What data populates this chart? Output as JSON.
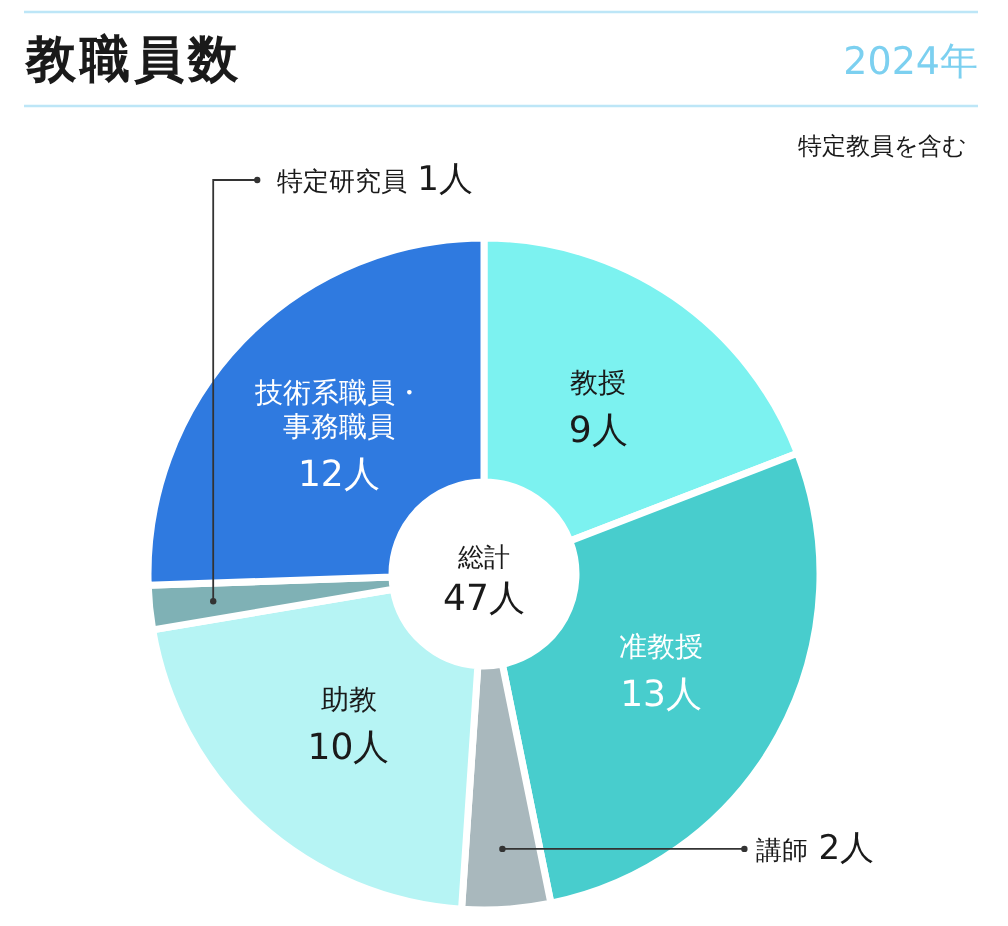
{
  "chart_data": {
    "type": "donut",
    "title": "教職員数",
    "subtitle": "2024年",
    "categories": [
      "教授",
      "准教授",
      "講師",
      "助教",
      "特定研究員",
      "技術系職員・事務職員"
    ],
    "values": [
      9,
      13,
      2,
      10,
      1,
      12
    ],
    "colors": [
      "#7cf2f0",
      "#48cdcd",
      "#a9b8bd",
      "#b6f4f4",
      "#7fb1b5",
      "#2f7ae0"
    ],
    "value_labels": [
      "9人",
      "13人",
      "2人",
      "10人",
      "1人",
      "12人"
    ],
    "annotations": [
      "特定教員を含む",
      "総計",
      "47人"
    ]
  }
}
